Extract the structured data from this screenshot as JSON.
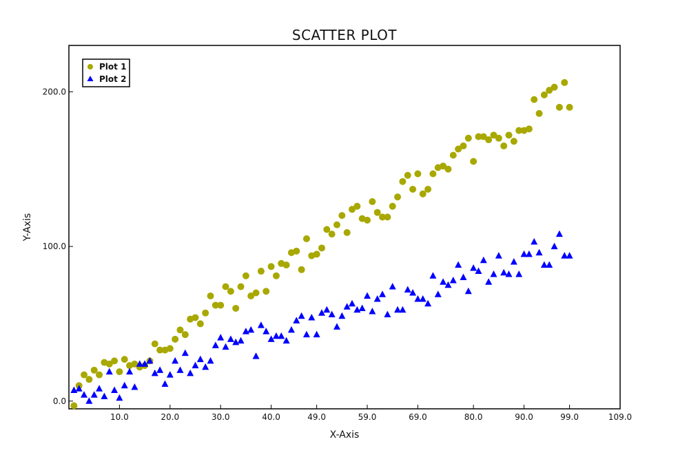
{
  "chart_data": {
    "type": "scatter",
    "title": "SCATTER PLOT",
    "xlabel": "X-Axis",
    "ylabel": "Y-Axis",
    "xlim": [
      0,
      109
    ],
    "ylim": [
      -5,
      230
    ],
    "x_ticks": [
      10,
      20,
      30,
      40,
      49,
      59,
      69,
      80,
      90,
      99,
      109
    ],
    "x_tick_labels": [
      "10.0",
      "20.0",
      "30.0",
      "40.0",
      "49.0",
      "59.0",
      "69.0",
      "80.0",
      "90.0",
      "99.0",
      "109.0"
    ],
    "y_ticks": [
      0,
      100,
      200
    ],
    "y_tick_labels": [
      "0.0",
      "100.0",
      "200.0"
    ],
    "grid": false,
    "legend_position": "top-left",
    "series": [
      {
        "name": "Plot 1",
        "marker": "circle",
        "color": "#a8a800",
        "points": [
          [
            1,
            -3
          ],
          [
            2,
            10
          ],
          [
            3,
            17
          ],
          [
            4,
            14
          ],
          [
            5,
            20
          ],
          [
            6,
            17
          ],
          [
            7,
            25
          ],
          [
            8,
            24
          ],
          [
            9,
            26
          ],
          [
            10,
            19
          ],
          [
            11,
            27
          ],
          [
            12,
            23
          ],
          [
            13,
            24
          ],
          [
            14,
            22
          ],
          [
            15,
            23
          ],
          [
            16,
            26
          ],
          [
            17,
            37
          ],
          [
            18,
            33
          ],
          [
            19,
            33
          ],
          [
            20,
            34
          ],
          [
            21,
            40
          ],
          [
            22,
            46
          ],
          [
            23,
            43
          ],
          [
            24,
            53
          ],
          [
            25,
            54
          ],
          [
            26,
            50
          ],
          [
            27,
            57
          ],
          [
            28,
            68
          ],
          [
            29,
            62
          ],
          [
            30,
            62
          ],
          [
            31,
            74
          ],
          [
            32,
            71
          ],
          [
            33,
            60
          ],
          [
            34,
            74
          ],
          [
            35,
            81
          ],
          [
            36,
            68
          ],
          [
            37,
            70
          ],
          [
            38,
            84
          ],
          [
            39,
            71
          ],
          [
            40,
            87
          ],
          [
            41,
            81
          ],
          [
            42,
            89
          ],
          [
            43,
            88
          ],
          [
            44,
            96
          ],
          [
            45,
            97
          ],
          [
            46,
            85
          ],
          [
            47,
            105
          ],
          [
            48,
            94
          ],
          [
            49,
            95
          ],
          [
            50,
            99
          ],
          [
            51,
            111
          ],
          [
            52,
            108
          ],
          [
            53,
            114
          ],
          [
            54,
            120
          ],
          [
            55,
            109
          ],
          [
            56,
            124
          ],
          [
            57,
            126
          ],
          [
            58,
            118
          ],
          [
            59,
            117
          ],
          [
            60,
            129
          ],
          [
            61,
            122
          ],
          [
            62,
            119
          ],
          [
            63,
            119
          ],
          [
            64,
            126
          ],
          [
            65,
            132
          ],
          [
            66,
            142
          ],
          [
            67,
            146
          ],
          [
            68,
            137
          ],
          [
            69,
            147
          ],
          [
            70,
            134
          ],
          [
            71,
            137
          ],
          [
            72,
            147
          ],
          [
            73,
            151
          ],
          [
            74,
            152
          ],
          [
            75,
            150
          ],
          [
            76,
            159
          ],
          [
            77,
            163
          ],
          [
            78,
            165
          ],
          [
            79,
            170
          ],
          [
            80,
            155
          ],
          [
            81,
            171
          ],
          [
            82,
            171
          ],
          [
            83,
            169
          ],
          [
            84,
            172
          ],
          [
            85,
            170
          ],
          [
            86,
            165
          ],
          [
            87,
            172
          ],
          [
            88,
            168
          ],
          [
            89,
            175
          ],
          [
            90,
            175
          ],
          [
            91,
            176
          ],
          [
            92,
            195
          ],
          [
            93,
            186
          ],
          [
            94,
            198
          ],
          [
            95,
            201
          ],
          [
            96,
            203
          ],
          [
            97,
            190
          ],
          [
            98,
            206
          ],
          [
            99,
            190
          ]
        ]
      },
      {
        "name": "Plot 2",
        "marker": "triangle",
        "color": "#0000ff",
        "points": [
          [
            1,
            7
          ],
          [
            2,
            8
          ],
          [
            3,
            4
          ],
          [
            4,
            0
          ],
          [
            5,
            4
          ],
          [
            6,
            8
          ],
          [
            7,
            3
          ],
          [
            8,
            19
          ],
          [
            9,
            7
          ],
          [
            10,
            2
          ],
          [
            11,
            10
          ],
          [
            12,
            19
          ],
          [
            13,
            9
          ],
          [
            14,
            24
          ],
          [
            15,
            24
          ],
          [
            16,
            26
          ],
          [
            17,
            18
          ],
          [
            18,
            20
          ],
          [
            19,
            11
          ],
          [
            20,
            17
          ],
          [
            21,
            26
          ],
          [
            22,
            20
          ],
          [
            23,
            31
          ],
          [
            24,
            18
          ],
          [
            25,
            23
          ],
          [
            26,
            27
          ],
          [
            27,
            22
          ],
          [
            28,
            26
          ],
          [
            29,
            36
          ],
          [
            30,
            41
          ],
          [
            31,
            35
          ],
          [
            32,
            40
          ],
          [
            33,
            38
          ],
          [
            34,
            39
          ],
          [
            35,
            45
          ],
          [
            36,
            46
          ],
          [
            37,
            29
          ],
          [
            38,
            49
          ],
          [
            39,
            45
          ],
          [
            40,
            40
          ],
          [
            41,
            42
          ],
          [
            42,
            42
          ],
          [
            43,
            39
          ],
          [
            44,
            46
          ],
          [
            45,
            52
          ],
          [
            46,
            55
          ],
          [
            47,
            43
          ],
          [
            48,
            54
          ],
          [
            49,
            43
          ],
          [
            50,
            57
          ],
          [
            51,
            59
          ],
          [
            52,
            56
          ],
          [
            53,
            48
          ],
          [
            54,
            55
          ],
          [
            55,
            61
          ],
          [
            56,
            63
          ],
          [
            57,
            59
          ],
          [
            58,
            60
          ],
          [
            59,
            68
          ],
          [
            60,
            58
          ],
          [
            61,
            66
          ],
          [
            62,
            69
          ],
          [
            63,
            56
          ],
          [
            64,
            74
          ],
          [
            65,
            59
          ],
          [
            66,
            59
          ],
          [
            67,
            72
          ],
          [
            68,
            70
          ],
          [
            69,
            66
          ],
          [
            70,
            66
          ],
          [
            71,
            63
          ],
          [
            72,
            81
          ],
          [
            73,
            69
          ],
          [
            74,
            77
          ],
          [
            75,
            75
          ],
          [
            76,
            78
          ],
          [
            77,
            88
          ],
          [
            78,
            80
          ],
          [
            79,
            71
          ],
          [
            80,
            86
          ],
          [
            81,
            84
          ],
          [
            82,
            91
          ],
          [
            83,
            77
          ],
          [
            84,
            82
          ],
          [
            85,
            94
          ],
          [
            86,
            83
          ],
          [
            87,
            82
          ],
          [
            88,
            90
          ],
          [
            89,
            82
          ],
          [
            90,
            95
          ],
          [
            91,
            95
          ],
          [
            92,
            103
          ],
          [
            93,
            96
          ],
          [
            94,
            88
          ],
          [
            95,
            88
          ],
          [
            96,
            100
          ],
          [
            97,
            108
          ],
          [
            98,
            94
          ],
          [
            99,
            94
          ]
        ]
      }
    ]
  }
}
